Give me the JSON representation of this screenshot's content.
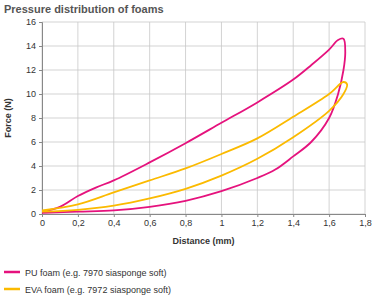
{
  "chart_data": {
    "type": "line",
    "title": "Pressure distribution of foams",
    "x_label": "Distance (mm)",
    "y_label": "Force (N)",
    "xlim": [
      0,
      1.8
    ],
    "xticks": [
      0,
      {
        "value": 0.2,
        "label": "0,2"
      },
      {
        "value": 0.4,
        "label": "0,4"
      },
      {
        "value": 0.6,
        "label": "0,6"
      },
      {
        "value": 0.8,
        "label": "0,8"
      },
      1,
      {
        "value": 1.2,
        "label": "1,2"
      },
      {
        "value": 1.4,
        "label": "1,4"
      },
      {
        "value": 1.6,
        "label": "1,6"
      },
      {
        "value": 1.8,
        "label": "1,8"
      }
    ],
    "ylim": [
      0,
      16
    ],
    "yticks": [
      0,
      2,
      4,
      6,
      8,
      10,
      12,
      14,
      16
    ],
    "grid": true,
    "legend": "bottom",
    "series": [
      {
        "name": "PU foam (e.g. 7970 siasponge soft)",
        "color": "#e5127d",
        "x": [
          0,
          0.1,
          0.2,
          0.3,
          0.4,
          0.6,
          0.8,
          1.0,
          1.2,
          1.4,
          1.5,
          1.6,
          1.65,
          1.68,
          1.69,
          1.68,
          1.65,
          1.6,
          1.5,
          1.4,
          1.3,
          1.2,
          1.0,
          0.8,
          0.6,
          0.4,
          0.2,
          0
        ],
        "values": [
          0.2,
          0.6,
          1.5,
          2.2,
          2.8,
          4.3,
          5.9,
          7.6,
          9.3,
          11.2,
          12.4,
          13.7,
          14.5,
          14.6,
          13.5,
          12.0,
          10.0,
          8.0,
          6.0,
          4.8,
          3.7,
          3.0,
          1.9,
          1.1,
          0.6,
          0.3,
          0.2,
          0.1
        ]
      },
      {
        "name": "EVA foam (e.g. 7972 siasponge soft)",
        "color": "#fbba00",
        "x": [
          0,
          0.2,
          0.4,
          0.6,
          0.8,
          1.0,
          1.2,
          1.4,
          1.6,
          1.68,
          1.7,
          1.68,
          1.6,
          1.4,
          1.2,
          1.0,
          0.8,
          0.6,
          0.4,
          0.2,
          0
        ],
        "values": [
          0.3,
          0.8,
          1.8,
          2.8,
          3.8,
          5.0,
          6.3,
          8.1,
          10.0,
          11.0,
          10.8,
          10.0,
          8.6,
          6.4,
          4.6,
          3.2,
          2.1,
          1.3,
          0.7,
          0.35,
          0.2
        ]
      }
    ]
  }
}
